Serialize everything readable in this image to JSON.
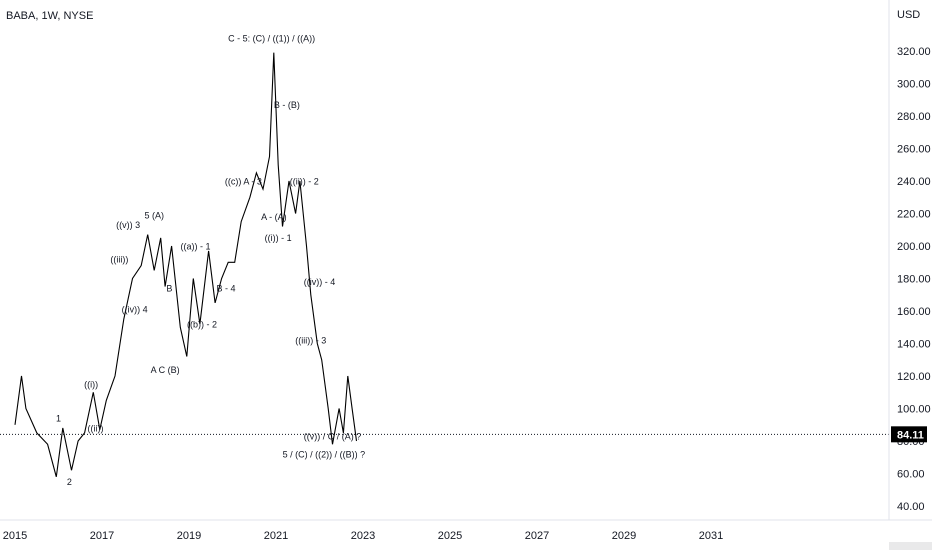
{
  "header": {
    "symbol": "BABA, 1W, NYSE",
    "currency": "USD"
  },
  "chart_data": {
    "type": "line",
    "title": "BABA, 1W, NYSE",
    "xlabel": "",
    "ylabel": "USD",
    "ylim": [
      30,
      330
    ],
    "xlim": [
      2015.0,
      2032.0
    ],
    "x_ticks": [
      "2015",
      "2017",
      "2019",
      "2021",
      "2023",
      "2025",
      "2027",
      "2029",
      "2031"
    ],
    "y_ticks": [
      "40.00",
      "60.00",
      "80.00",
      "100.00",
      "120.00",
      "140.00",
      "160.00",
      "180.00",
      "200.00",
      "220.00",
      "240.00",
      "260.00",
      "280.00",
      "300.00",
      "320.00"
    ],
    "last_price": "84.11",
    "last_price_value": 84.11,
    "grid": false,
    "series": [
      {
        "x": [
          2015.0,
          2015.15,
          2015.25,
          2015.5,
          2015.75,
          2015.95,
          2016.1,
          2016.3,
          2016.45,
          2016.6,
          2016.8,
          2016.95,
          2017.1,
          2017.3,
          2017.5,
          2017.7,
          2017.9,
          2018.05,
          2018.2,
          2018.35,
          2018.45,
          2018.6,
          2018.8,
          2018.95,
          2019.1,
          2019.25,
          2019.45,
          2019.6,
          2019.75,
          2019.9,
          2020.05,
          2020.2,
          2020.4,
          2020.55,
          2020.7,
          2020.85,
          2020.95,
          2021.05,
          2021.15,
          2021.3,
          2021.45,
          2021.55,
          2021.7,
          2021.8,
          2021.95,
          2022.05,
          2022.2,
          2022.3,
          2022.45,
          2022.55,
          2022.65,
          2022.75,
          2022.85
        ],
        "values": [
          90,
          120,
          100,
          85,
          78,
          58,
          88,
          62,
          80,
          85,
          110,
          87,
          105,
          120,
          155,
          180,
          188,
          207,
          185,
          205,
          175,
          200,
          150,
          132,
          180,
          152,
          197,
          165,
          180,
          190,
          190,
          215,
          230,
          245,
          235,
          255,
          319,
          250,
          212,
          240,
          220,
          240,
          200,
          170,
          140,
          130,
          100,
          78,
          100,
          85,
          120,
          100,
          80
        ]
      }
    ],
    "annotations": [
      {
        "text": "C - 5: (C) / ((1)) / ((A))",
        "x": 2020.9,
        "y": 326
      },
      {
        "text": "B - (B)",
        "x": 2021.25,
        "y": 285
      },
      {
        "text": "((ii)) - 2",
        "x": 2021.65,
        "y": 238
      },
      {
        "text": "((c)) A - 3",
        "x": 2020.25,
        "y": 238
      },
      {
        "text": "A - (A)",
        "x": 2020.95,
        "y": 216
      },
      {
        "text": "((i)) - 1",
        "x": 2021.05,
        "y": 203
      },
      {
        "text": "((iv)) - 4",
        "x": 2022.0,
        "y": 176
      },
      {
        "text": "((iii)) - 3",
        "x": 2021.8,
        "y": 140
      },
      {
        "text": "((v)) / C / (A) ?",
        "x": 2022.3,
        "y": 81
      },
      {
        "text": "5 / (C) / ((2)) / ((B)) ?",
        "x": 2022.1,
        "y": 70
      },
      {
        "text": "5 (A)",
        "x": 2018.2,
        "y": 217
      },
      {
        "text": "((v)) 3",
        "x": 2017.6,
        "y": 211
      },
      {
        "text": "((iii))",
        "x": 2017.4,
        "y": 190
      },
      {
        "text": "((iv)) 4",
        "x": 2017.75,
        "y": 159
      },
      {
        "text": "((a)) - 1",
        "x": 2019.15,
        "y": 198
      },
      {
        "text": "B",
        "x": 2018.55,
        "y": 172
      },
      {
        "text": "B - 4",
        "x": 2019.85,
        "y": 172
      },
      {
        "text": "((b)) - 2",
        "x": 2019.3,
        "y": 150
      },
      {
        "text": "A C (B)",
        "x": 2018.45,
        "y": 122
      },
      {
        "text": "((i))",
        "x": 2016.75,
        "y": 113
      },
      {
        "text": "((ii))",
        "x": 2016.85,
        "y": 86
      },
      {
        "text": "1",
        "x": 2016.0,
        "y": 92
      },
      {
        "text": "2",
        "x": 2016.25,
        "y": 53
      }
    ]
  },
  "colors": {
    "line": "#000000",
    "price_label_bg": "#000000",
    "price_line": "#131722",
    "axis_border": "#e0e3eb"
  }
}
